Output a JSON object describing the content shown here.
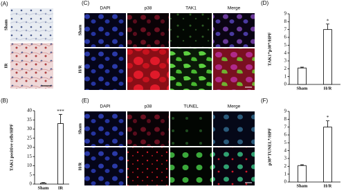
{
  "image_panels": [
    {
      "label": "(A)",
      "rows": [
        "Sham",
        "IR"
      ]
    },
    {
      "label": "(C)",
      "columns": [
        "DAPI",
        "p38",
        "TAK1",
        "Merge"
      ],
      "rows": [
        "Sham",
        "H/R"
      ]
    },
    {
      "label": "(E)",
      "columns": [
        "DAPI",
        "p38",
        "TUNEL",
        "Merge"
      ],
      "rows": [
        "Sham",
        "H/R"
      ]
    }
  ],
  "chart_data": [
    {
      "type": "bar",
      "label": "(B)",
      "y_label": "TAK1 positive cells/HPF",
      "categories": [
        "Sham",
        "IR"
      ],
      "values": [
        0.5,
        33
      ],
      "errors": [
        0.3,
        5
      ],
      "annotation": "***",
      "color": "#ffffff",
      "ylim": [
        0,
        40
      ],
      "yticks": [
        0,
        5,
        10,
        15,
        20,
        25,
        30,
        35,
        40
      ]
    },
    {
      "type": "bar",
      "label": "(D)",
      "y_label": "TAK1⁺p38⁺/HPF",
      "categories": [
        "Sham",
        "H/R"
      ],
      "values": [
        2.1,
        7.0
      ],
      "errors": [
        0.1,
        0.7
      ],
      "annotation": "*",
      "color": "#ffffff",
      "ylim": [
        0,
        9
      ],
      "yticks": [
        0,
        1,
        2,
        3,
        4,
        5,
        6,
        7,
        8,
        9
      ]
    },
    {
      "type": "bar",
      "label": "(F)",
      "y_label": "p38⁺TUNEL⁺/HPF",
      "categories": [
        "Sham",
        "H/R"
      ],
      "values": [
        2.1,
        7.0
      ],
      "errors": [
        0.1,
        0.8
      ],
      "annotation": "*",
      "color": "#ffffff",
      "ylim": [
        0,
        9
      ],
      "yticks": [
        0,
        1,
        2,
        3,
        4,
        5,
        6,
        7,
        8,
        9
      ]
    }
  ]
}
